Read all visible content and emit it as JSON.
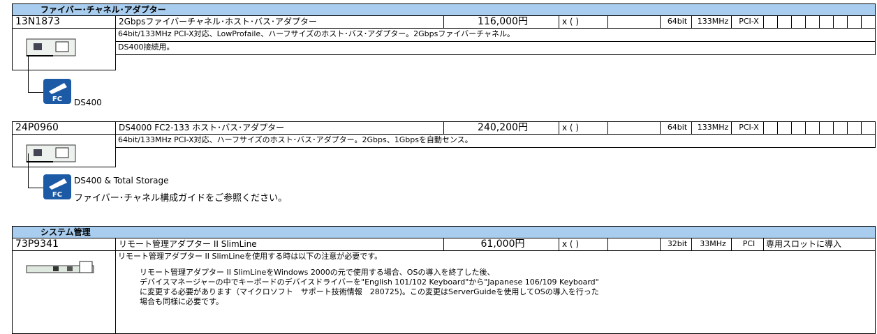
{
  "sections": [
    {
      "title": "ファイバー･チャネル･アダプター",
      "items": [
        {
          "part": "13N1873",
          "name": "2Gbpsファイバーチャネル･ホスト･バス･アダプター",
          "price": "116,000円",
          "option": "x (   )",
          "bus": "64bit",
          "clock": "133MHz",
          "slot": "PCI-X",
          "description": [
            "64bit/133MHz PCI-X対応、LowProfaile、ハーフサイズのホスト･バス･アダプター。2Gbpsファイバーチャネル。",
            "DS400接続用。"
          ],
          "icon_text": [
            "DS400"
          ]
        },
        {
          "part": "24P0960",
          "name": "DS4000 FC2-133 ホスト･バス･アダプター",
          "price": "240,200円",
          "option": "x (   )",
          "bus": "64bit",
          "clock": "133MHz",
          "slot": "PCI-X",
          "description": [
            "64bit/133MHz PCI-X対応、ハーフサイズのホスト･バス･アダプター。2Gbps、1Gbpsを自動センス。"
          ],
          "icon_text": [
            "DS400 & Total Storage",
            "ファイバー･チャネル構成ガイドをご参照ください。"
          ]
        }
      ]
    },
    {
      "title": "システム管理",
      "items": [
        {
          "part": "73P9341",
          "name": "リモート管理アダプター II SlimLine",
          "price": "61,000円",
          "option": "x (   )",
          "bus": "32bit",
          "clock": "33MHz",
          "slot": "PCI",
          "note": "専用スロットに導入",
          "description": [
            "リモート管理アダプター II SlimLineを使用する時は以下の注意が必要です。"
          ],
          "details": [
            "リモート管理アダプター II SlimLineをWindows 2000の元で使用する場合、OSの導入を終了した後、",
            "デバイスマネージャーの中でキーボードのデバイスドライバーを\"English 101/102 Keyboard\"から\"Japanese 106/109 Keyboard\"",
            "に変更する必要があります（マイクロソフト　サポート技術情報　280725)。この変更はServerGuideを使用してOSの導入を行った",
            "場合も同様に必要です。"
          ]
        }
      ]
    }
  ]
}
